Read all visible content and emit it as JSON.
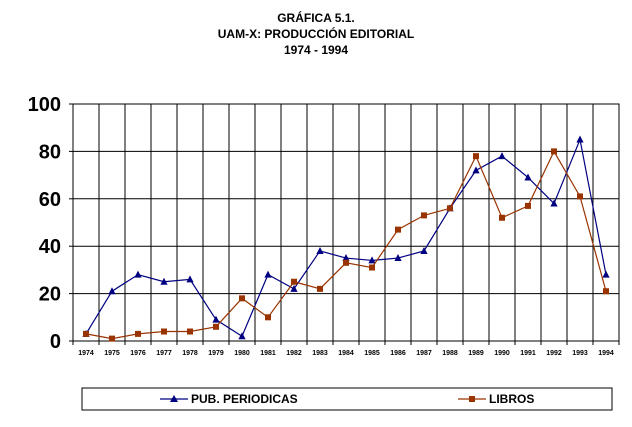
{
  "chart_data": {
    "type": "line",
    "title": "GRÁFICA 5.1.",
    "subtitle": "UAM-X: PRODUCCIÓN EDITORIAL",
    "period": "1974 - 1994",
    "xlabel": "",
    "ylabel": "",
    "ylim": [
      0,
      100
    ],
    "yticks": [
      "0",
      "20",
      "40",
      "60",
      "80",
      "100"
    ],
    "grid": true,
    "legend_position": "bottom",
    "categories": [
      "1974",
      "1975",
      "1976",
      "1977",
      "1978",
      "1979",
      "1980",
      "1981",
      "1982",
      "1983",
      "1984",
      "1985",
      "1986",
      "1987",
      "1988",
      "1989",
      "1990",
      "1991",
      "1992",
      "1993",
      "1994"
    ],
    "series": [
      {
        "name": "PUB. PERIODICAS",
        "color": "#000080",
        "marker": "triangle",
        "values": [
          3,
          21,
          28,
          25,
          26,
          9,
          2,
          28,
          22,
          38,
          35,
          34,
          35,
          38,
          56,
          72,
          78,
          69,
          58,
          85,
          28
        ]
      },
      {
        "name": "LIBROS",
        "color": "#993300",
        "marker": "square",
        "values": [
          3,
          1,
          3,
          4,
          4,
          6,
          18,
          10,
          25,
          22,
          33,
          31,
          47,
          53,
          56,
          78,
          52,
          57,
          80,
          61,
          21
        ]
      }
    ]
  }
}
